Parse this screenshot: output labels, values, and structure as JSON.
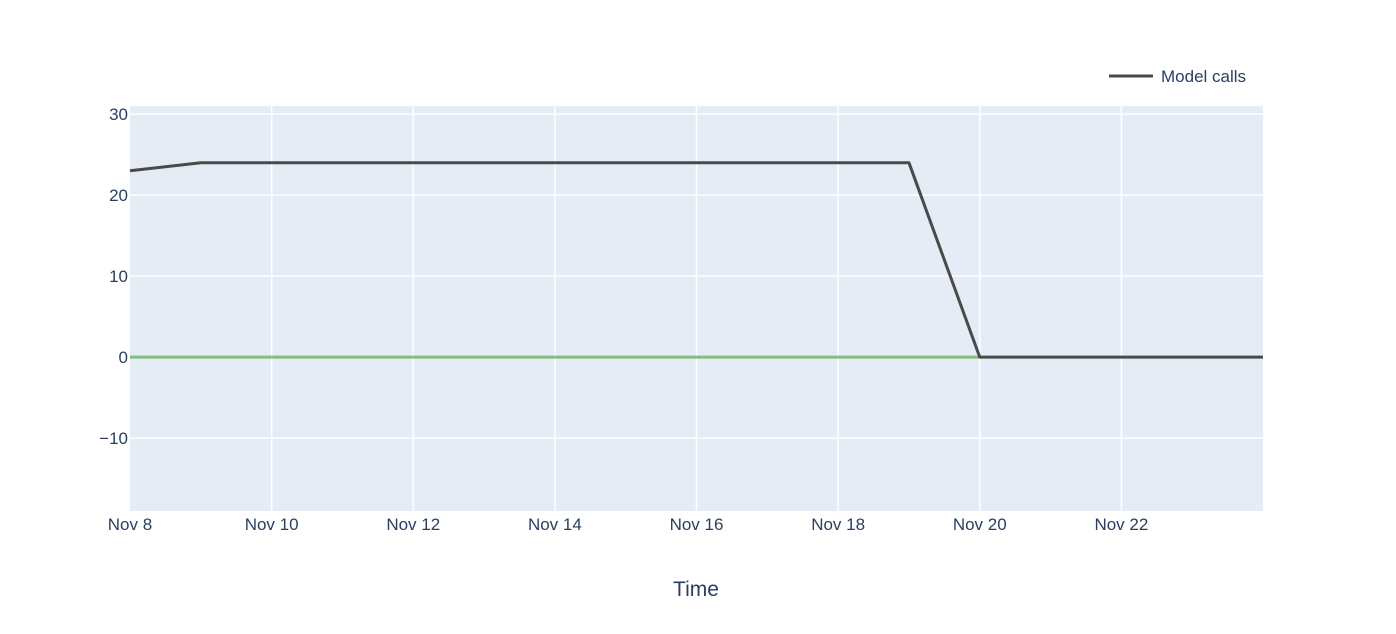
{
  "chart_data": {
    "type": "line",
    "title": "",
    "xlabel": "Time",
    "ylabel": "",
    "x_type": "date",
    "xlim": [
      "2023-11-08",
      "2023-11-24"
    ],
    "ylim": [
      -19,
      31
    ],
    "x_ticks": [
      {
        "date": "2023-11-08",
        "label": "Nov 8"
      },
      {
        "date": "2023-11-10",
        "label": "Nov 10"
      },
      {
        "date": "2023-11-12",
        "label": "Nov 12"
      },
      {
        "date": "2023-11-14",
        "label": "Nov 14"
      },
      {
        "date": "2023-11-16",
        "label": "Nov 16"
      },
      {
        "date": "2023-11-18",
        "label": "Nov 18"
      },
      {
        "date": "2023-11-20",
        "label": "Nov 20"
      },
      {
        "date": "2023-11-22",
        "label": "Nov 22"
      }
    ],
    "y_ticks": [
      {
        "value": 30,
        "label": "30"
      },
      {
        "value": 20,
        "label": "20"
      },
      {
        "value": 10,
        "label": "10"
      },
      {
        "value": 0,
        "label": "0"
      },
      {
        "value": -10,
        "label": "−10"
      }
    ],
    "grid": true,
    "legend": {
      "placement": "top-right"
    },
    "series": [
      {
        "name": "Model calls",
        "color": "#4a4a4a",
        "show_in_legend": true,
        "x": [
          "2023-11-08",
          "2023-11-09",
          "2023-11-10",
          "2023-11-11",
          "2023-11-12",
          "2023-11-13",
          "2023-11-14",
          "2023-11-15",
          "2023-11-16",
          "2023-11-17",
          "2023-11-18",
          "2023-11-19",
          "2023-11-20",
          "2023-11-21",
          "2023-11-22",
          "2023-11-23",
          "2023-11-24"
        ],
        "y": [
          23,
          24,
          24,
          24,
          24,
          24,
          24,
          24,
          24,
          24,
          24,
          24,
          0,
          0,
          0,
          0,
          0
        ]
      },
      {
        "color": "#7fbf7f",
        "show_in_legend": false,
        "x": [
          "2023-11-08",
          "2023-11-20"
        ],
        "y": [
          0,
          0
        ]
      }
    ]
  }
}
